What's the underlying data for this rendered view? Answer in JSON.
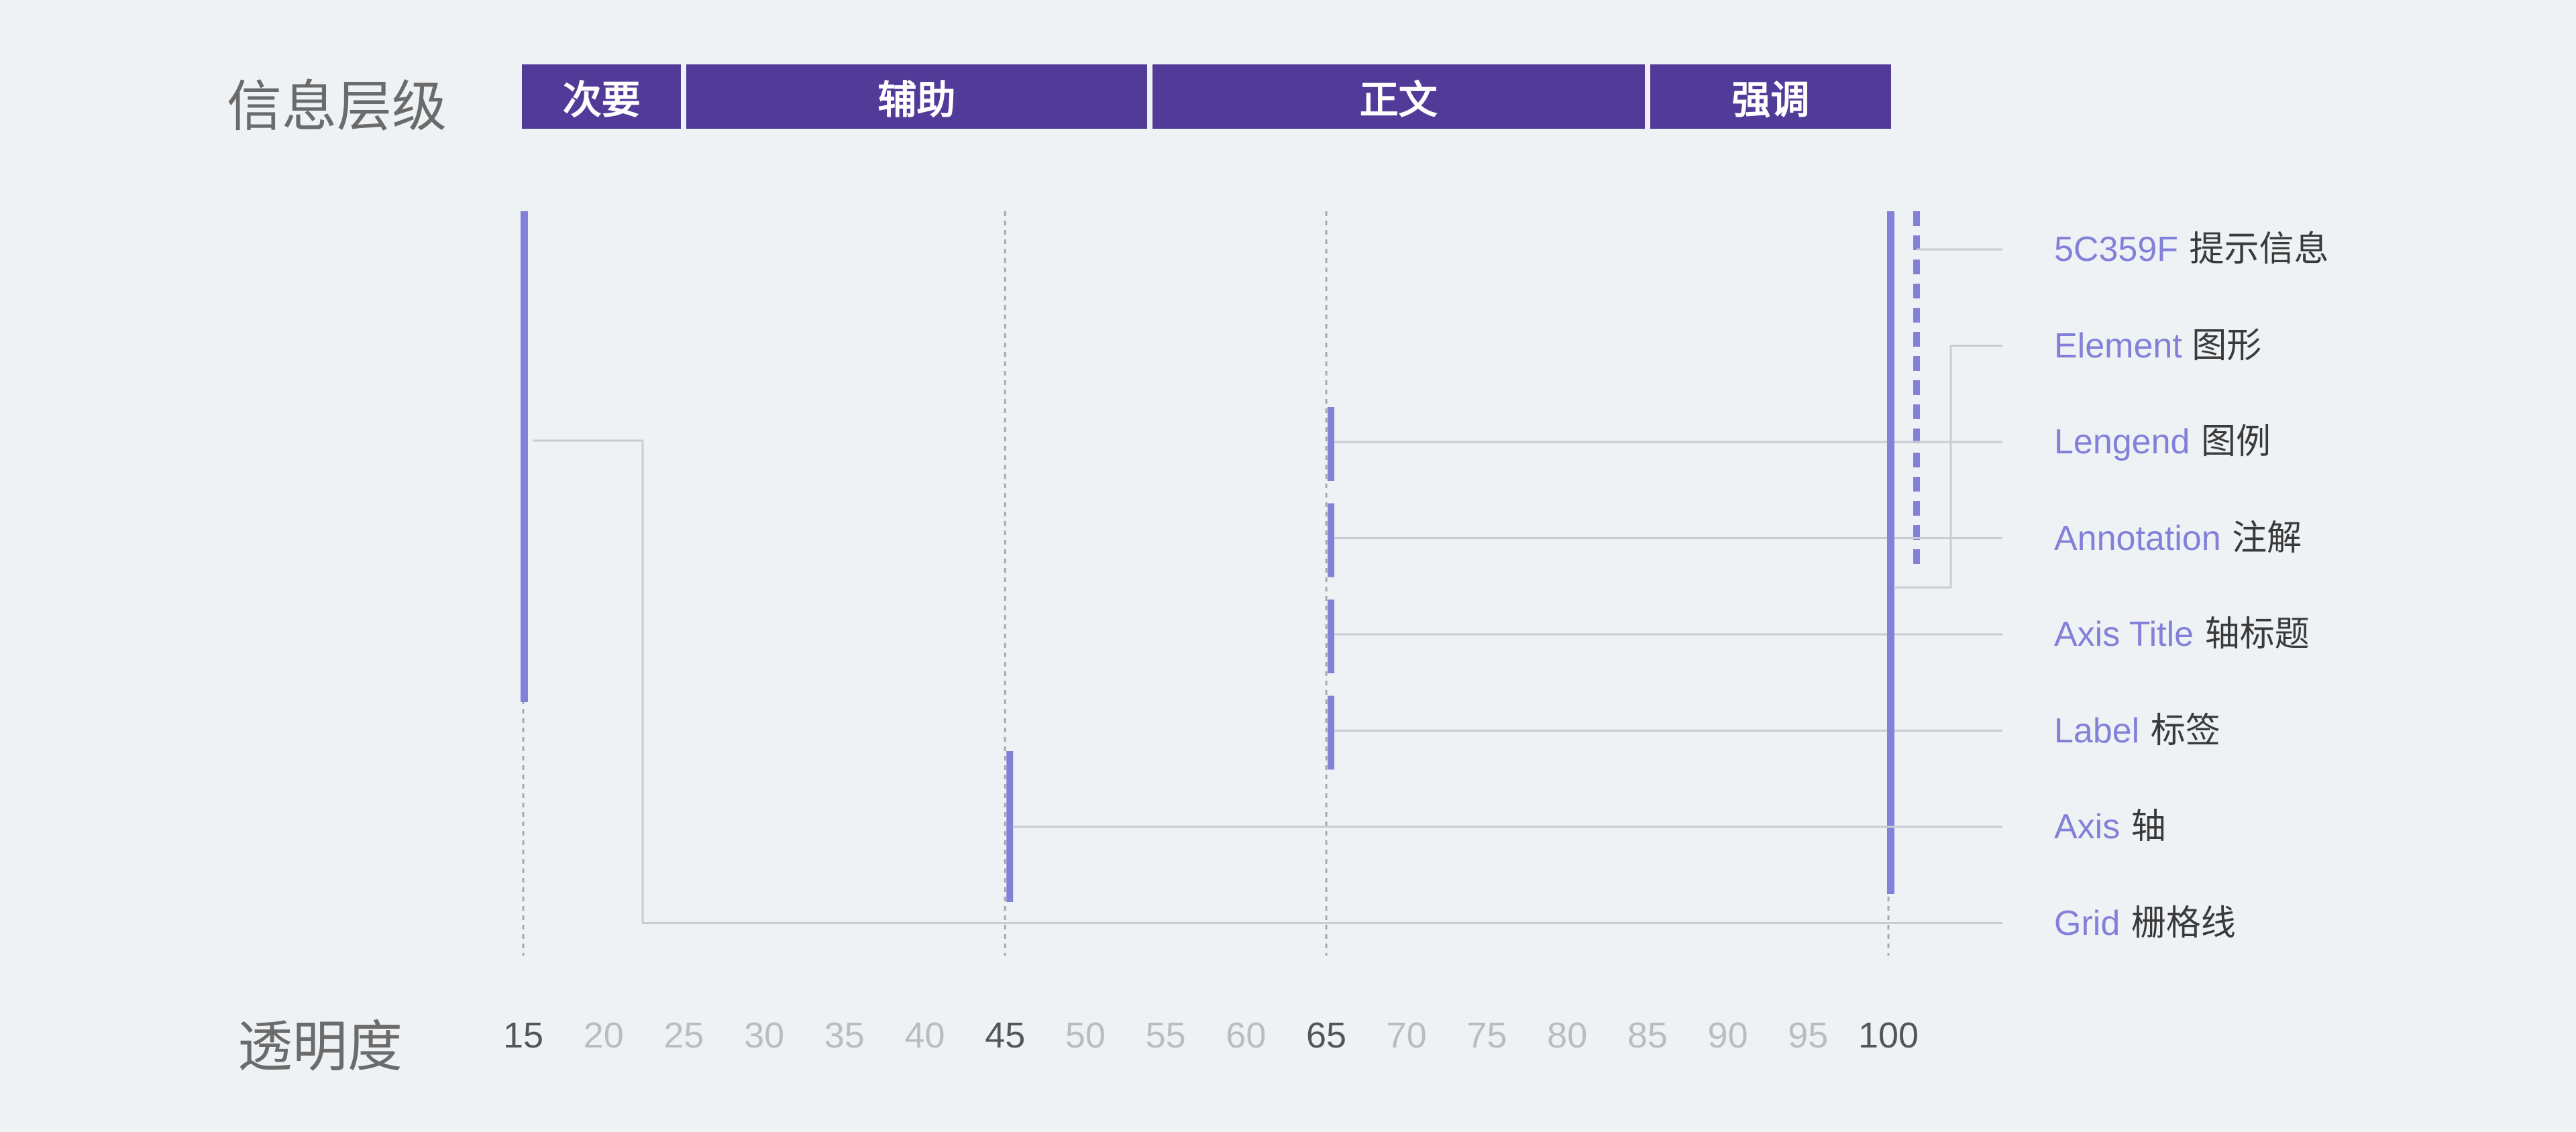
{
  "titles": {
    "hierarchy": "信息层级",
    "opacity": "透明度"
  },
  "colors": {
    "band": "#523a99",
    "mark": "#8280d8",
    "line": "#c8ccd3",
    "guide": "#a7a9ae",
    "tick_major": "#555555",
    "tick_minor": "#b9bcc1",
    "legend_en": "#8280d8",
    "legend_zh": "#3a3a3a",
    "background": "#eff2f5"
  },
  "bands": [
    {
      "label": "次要",
      "from": 15,
      "to": 25
    },
    {
      "label": "辅助",
      "from": 25,
      "to": 54
    },
    {
      "label": "正文",
      "from": 54,
      "to": 85
    },
    {
      "label": "强调",
      "from": 85,
      "to": 100
    }
  ],
  "guide_values": [
    15,
    45,
    65,
    100
  ],
  "ticks": [
    {
      "value": 15,
      "label": "15",
      "major": true
    },
    {
      "value": 20,
      "label": "20",
      "major": false
    },
    {
      "value": 25,
      "label": "25",
      "major": false
    },
    {
      "value": 30,
      "label": "30",
      "major": false
    },
    {
      "value": 35,
      "label": "35",
      "major": false
    },
    {
      "value": 40,
      "label": "40",
      "major": false
    },
    {
      "value": 45,
      "label": "45",
      "major": true
    },
    {
      "value": 50,
      "label": "50",
      "major": false
    },
    {
      "value": 55,
      "label": "55",
      "major": false
    },
    {
      "value": 60,
      "label": "60",
      "major": false
    },
    {
      "value": 65,
      "label": "65",
      "major": true
    },
    {
      "value": 70,
      "label": "70",
      "major": false
    },
    {
      "value": 75,
      "label": "75",
      "major": false
    },
    {
      "value": 80,
      "label": "80",
      "major": false
    },
    {
      "value": 85,
      "label": "85",
      "major": false
    },
    {
      "value": 90,
      "label": "90",
      "major": false
    },
    {
      "value": 95,
      "label": "95",
      "major": false
    },
    {
      "value": 100,
      "label": "100",
      "major": true
    }
  ],
  "legend": [
    {
      "en": "5C359F",
      "zh": "提示信息",
      "opacity": 100,
      "style": "dashed"
    },
    {
      "en": "Element ",
      "zh": "图形",
      "opacity": 100,
      "style": "solid"
    },
    {
      "en": "Lengend",
      "zh": "图例",
      "opacity": 65,
      "style": "solid"
    },
    {
      "en": "Annotation",
      "zh": "注解",
      "opacity": 65,
      "style": "solid"
    },
    {
      "en": "Axis Title",
      "zh": "轴标题",
      "opacity": 65,
      "style": "solid"
    },
    {
      "en": "Label",
      "zh": "标签",
      "opacity": 65,
      "style": "solid"
    },
    {
      "en": "Axis",
      "zh": "轴",
      "opacity": 45,
      "style": "solid"
    },
    {
      "en": "Grid",
      "zh": "栅格线",
      "opacity": 15,
      "style": "solid"
    }
  ]
}
